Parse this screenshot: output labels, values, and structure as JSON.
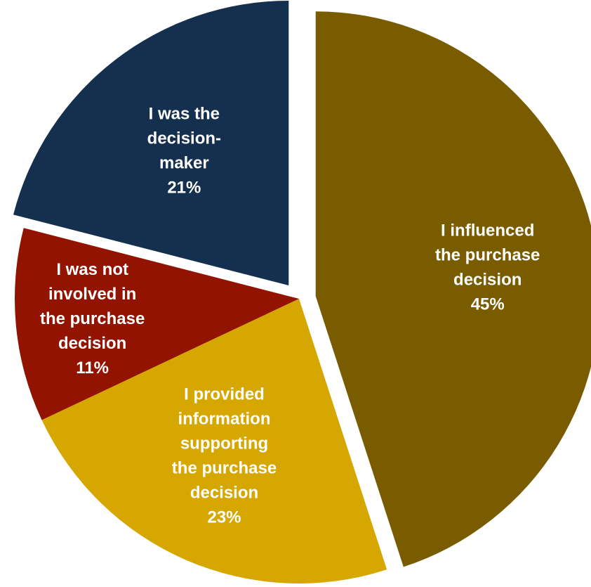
{
  "chart_data": {
    "type": "pie",
    "start_angle_deg": -90,
    "direction": "clockwise",
    "slices": [
      {
        "key": "influenced",
        "name": "I influenced the purchase decision",
        "label_lines": [
          "I influenced",
          "the purchase",
          "decision"
        ],
        "percent_label": "45%",
        "value": 45,
        "color": "#7a5c00"
      },
      {
        "key": "provided",
        "name": "I provided information supporting the purchase decision",
        "label_lines": [
          "I provided",
          "information",
          "supporting",
          "the purchase",
          "decision"
        ],
        "percent_label": "23%",
        "value": 23,
        "color": "#d5a700"
      },
      {
        "key": "not-involved",
        "name": "I was not involved in the purchase decision",
        "label_lines": [
          "I was not",
          "involved in",
          "the purchase",
          "decision"
        ],
        "percent_label": "11%",
        "value": 11,
        "color": "#921300"
      },
      {
        "key": "decision-maker",
        "name": "I was the decision-maker",
        "label_lines": [
          "I was the",
          "decision-",
          "maker"
        ],
        "percent_label": "21%",
        "value": 21,
        "color": "#15304f"
      }
    ],
    "exploded": [
      "influenced",
      "decision-maker"
    ]
  }
}
